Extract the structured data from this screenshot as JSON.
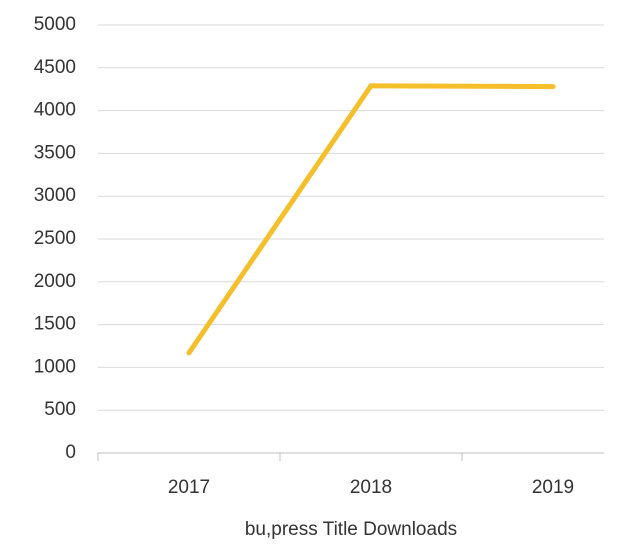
{
  "chart_data": {
    "type": "line",
    "x_label": "bu,press Title Downloads",
    "categories": [
      "2017",
      "2018",
      "2019"
    ],
    "series": [
      {
        "name": "Downloads",
        "color": "#f4bf2a",
        "values": [
          1170,
          4290,
          4280
        ]
      }
    ],
    "ylim": [
      0,
      5000
    ],
    "yticks": [
      0,
      500,
      1000,
      1500,
      2000,
      2500,
      3000,
      3500,
      4000,
      4500,
      5000
    ],
    "grid": true
  }
}
